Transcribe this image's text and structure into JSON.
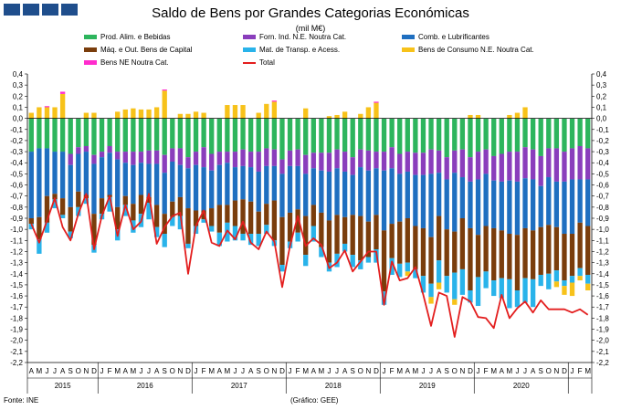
{
  "header": {
    "title": "Saldo de Bens por Grandes Categorias Económicas",
    "unit": "(mil M€)"
  },
  "footer": {
    "source": "Fonte: INE",
    "graphic": "(Gráfico: GEE)"
  },
  "colors": {
    "food": "#2db55d",
    "fuel": "#1f6fc0",
    "capital": "#7a3d0c",
    "transport": "#29b3ea",
    "consumer": "#f7c21a",
    "ne": "#ff2ccd",
    "other": "#8a3ebc",
    "total": "#e31e1e"
  },
  "chart_data": {
    "type": "bar",
    "stacked": true,
    "title": "Saldo de Bens por Grandes Categorias Económicas",
    "subtitle": "(mil M€)",
    "ylim": [
      -2.2,
      0.4
    ],
    "y_ticks": [
      "0,4",
      "0,3",
      "0,2",
      "0,1",
      "0,0",
      "-0,1",
      "-0,2",
      "-0,3",
      "-0,4",
      "-0,5",
      "-0,6",
      "-0,7",
      "-0,8",
      "-0,9",
      "-1,0",
      "-1,1",
      "-1,2",
      "-1,3",
      "-1,4",
      "-1,5",
      "-1,6",
      "-1,7",
      "-1,8",
      "-1,9",
      "-2,0",
      "-2,1",
      "-2,2"
    ],
    "month_labels": [
      "A",
      "M",
      "J",
      "J",
      "A",
      "S",
      "O",
      "N",
      "D",
      "J",
      "F",
      "M",
      "A",
      "M",
      "J",
      "J",
      "A",
      "S",
      "O",
      "N",
      "D",
      "J",
      "F",
      "M",
      "A",
      "M",
      "J",
      "J",
      "A",
      "S",
      "O",
      "N",
      "D",
      "J",
      "F",
      "M",
      "A",
      "M",
      "J",
      "J",
      "A",
      "S",
      "O",
      "N",
      "D",
      "J",
      "F",
      "M",
      "A",
      "M",
      "J",
      "J",
      "A",
      "S",
      "O",
      "N",
      "D",
      "J",
      "F",
      "M",
      "A",
      "M",
      "J",
      "J",
      "A",
      "S",
      "O",
      "N",
      "D",
      "J",
      "F",
      "M"
    ],
    "year_labels": [
      "2015",
      "2016",
      "2017",
      "2018",
      "2019",
      "2020"
    ],
    "legend_position": "top",
    "grid": false,
    "legend": [
      {
        "key": "food",
        "label": "Prod. Alim. e Bebidas"
      },
      {
        "key": "other",
        "label": "Forn. Ind. N.E. Noutra Cat."
      },
      {
        "key": "fuel",
        "label": "Comb. e Lubrificantes"
      },
      {
        "key": "capital",
        "label": "Máq. e Out. Bens de Capital"
      },
      {
        "key": "transport",
        "label": "Mat. de Transp. e Acess."
      },
      {
        "key": "consumer",
        "label": "Bens de Consumo N.E. Noutra Cat."
      },
      {
        "key": "ne",
        "label": "Bens NE Noutra Cat."
      },
      {
        "key": "total",
        "label": "Total"
      }
    ],
    "series": [
      {
        "name": "Prod. Alim. e Bebidas",
        "key": "food",
        "values": [
          -0.3,
          -0.27,
          -0.27,
          -0.3,
          -0.3,
          -0.32,
          -0.26,
          -0.25,
          -0.33,
          -0.3,
          -0.25,
          -0.3,
          -0.3,
          -0.3,
          -0.3,
          -0.29,
          -0.29,
          -0.33,
          -0.27,
          -0.27,
          -0.35,
          -0.3,
          -0.26,
          -0.32,
          -0.3,
          -0.3,
          -0.3,
          -0.28,
          -0.3,
          -0.3,
          -0.27,
          -0.28,
          -0.37,
          -0.29,
          -0.28,
          -0.33,
          -0.31,
          -0.31,
          -0.31,
          -0.28,
          -0.3,
          -0.35,
          -0.28,
          -0.29,
          -0.3,
          -0.3,
          -0.26,
          -0.32,
          -0.3,
          -0.31,
          -0.31,
          -0.28,
          -0.29,
          -0.35,
          -0.29,
          -0.28,
          -0.35,
          -0.3,
          -0.28,
          -0.34,
          -0.32,
          -0.3,
          -0.3,
          -0.26,
          -0.28,
          -0.34,
          -0.27,
          -0.27,
          -0.3,
          -0.27,
          -0.25,
          -0.27
        ]
      },
      {
        "name": "Forn. Ind. N.E. Noutra Cat.",
        "key": "other",
        "values": [
          0.0,
          0.0,
          0.0,
          0.0,
          0.0,
          -0.1,
          -0.06,
          -0.05,
          -0.08,
          -0.05,
          -0.06,
          -0.07,
          -0.1,
          -0.12,
          -0.1,
          -0.12,
          -0.12,
          -0.16,
          -0.12,
          -0.15,
          -0.1,
          -0.12,
          -0.18,
          -0.15,
          -0.12,
          -0.1,
          -0.14,
          -0.15,
          -0.14,
          -0.18,
          -0.16,
          -0.15,
          -0.13,
          -0.14,
          -0.15,
          -0.17,
          -0.14,
          -0.16,
          -0.17,
          -0.17,
          -0.18,
          -0.16,
          -0.16,
          -0.18,
          -0.15,
          -0.17,
          -0.19,
          -0.18,
          -0.18,
          -0.2,
          -0.2,
          -0.22,
          -0.2,
          -0.2,
          -0.2,
          -0.25,
          -0.22,
          -0.25,
          -0.22,
          -0.22,
          -0.25,
          -0.26,
          -0.27,
          -0.28,
          -0.27,
          -0.27,
          -0.26,
          -0.3,
          -0.27,
          -0.28,
          -0.3,
          -0.28
        ]
      },
      {
        "name": "Comb. e Lubrificantes",
        "key": "fuel",
        "values": [
          -0.6,
          -0.62,
          -0.43,
          -0.38,
          -0.42,
          -0.38,
          -0.34,
          -0.39,
          -0.45,
          -0.37,
          -0.38,
          -0.43,
          -0.3,
          -0.35,
          -0.29,
          -0.3,
          -0.37,
          -0.37,
          -0.36,
          -0.29,
          -0.36,
          -0.41,
          -0.39,
          -0.34,
          -0.36,
          -0.38,
          -0.3,
          -0.3,
          -0.31,
          -0.36,
          -0.34,
          -0.31,
          -0.39,
          -0.42,
          -0.39,
          -0.38,
          -0.33,
          -0.38,
          -0.44,
          -0.42,
          -0.41,
          -0.36,
          -0.44,
          -0.46,
          -0.42,
          -0.54,
          -0.5,
          -0.43,
          -0.42,
          -0.46,
          -0.48,
          -0.57,
          -0.39,
          -0.45,
          -0.53,
          -0.37,
          -0.42,
          -0.5,
          -0.47,
          -0.43,
          -0.44,
          -0.48,
          -0.48,
          -0.45,
          -0.46,
          -0.37,
          -0.43,
          -0.41,
          -0.47,
          -0.49,
          -0.39,
          -0.42
        ]
      },
      {
        "name": "Máq. e Out. Bens de Capital",
        "key": "capital",
        "values": [
          -0.05,
          -0.2,
          -0.24,
          -0.05,
          -0.15,
          -0.22,
          -0.14,
          -0.03,
          -0.28,
          -0.14,
          -0.02,
          -0.2,
          -0.08,
          -0.15,
          -0.17,
          -0.05,
          -0.2,
          -0.18,
          -0.14,
          -0.17,
          -0.32,
          -0.14,
          -0.08,
          -0.16,
          -0.25,
          -0.16,
          -0.23,
          -0.31,
          -0.29,
          -0.2,
          -0.19,
          -0.36,
          -0.43,
          -0.26,
          -0.21,
          -0.35,
          -0.19,
          -0.31,
          -0.38,
          -0.35,
          -0.24,
          -0.36,
          -0.4,
          -0.32,
          -0.31,
          -0.55,
          -0.31,
          -0.38,
          -0.4,
          -0.39,
          -0.43,
          -0.42,
          -0.4,
          -0.42,
          -0.37,
          -0.46,
          -0.56,
          -0.38,
          -0.41,
          -0.47,
          -0.43,
          -0.41,
          -0.5,
          -0.45,
          -0.44,
          -0.43,
          -0.44,
          -0.39,
          -0.42,
          -0.38,
          -0.41,
          -0.44
        ]
      },
      {
        "name": "Mat. de Transp. e Acess.",
        "key": "transport",
        "values": [
          -0.05,
          -0.13,
          -0.09,
          -0.08,
          -0.03,
          -0.06,
          -0.08,
          -0.05,
          -0.07,
          -0.05,
          -0.13,
          -0.1,
          -0.1,
          -0.11,
          -0.12,
          -0.15,
          -0.09,
          -0.12,
          -0.08,
          -0.12,
          -0.04,
          -0.07,
          -0.03,
          -0.05,
          -0.12,
          -0.17,
          -0.13,
          -0.06,
          -0.1,
          -0.11,
          -0.08,
          -0.05,
          -0.06,
          -0.06,
          -0.08,
          -0.1,
          -0.14,
          -0.09,
          -0.08,
          -0.12,
          -0.07,
          -0.11,
          -0.08,
          -0.05,
          -0.12,
          -0.12,
          -0.15,
          -0.12,
          -0.08,
          -0.08,
          -0.15,
          -0.12,
          -0.2,
          -0.15,
          -0.24,
          -0.23,
          -0.11,
          -0.26,
          -0.15,
          -0.14,
          -0.18,
          -0.26,
          -0.15,
          -0.22,
          -0.25,
          -0.1,
          -0.14,
          -0.1,
          -0.05,
          -0.06,
          -0.07,
          -0.08
        ]
      },
      {
        "name": "Bens de Consumo N.E. Noutra Cat.",
        "key": "consumer",
        "values": [
          0.05,
          0.1,
          0.1,
          0.1,
          0.22,
          0.0,
          0.0,
          0.05,
          0.05,
          0.0,
          0.0,
          0.06,
          0.08,
          0.09,
          0.08,
          0.08,
          0.1,
          0.25,
          0.0,
          0.04,
          0.04,
          0.06,
          0.05,
          0.0,
          0.0,
          0.12,
          0.12,
          0.12,
          0.0,
          0.05,
          0.13,
          0.15,
          0.0,
          0.0,
          0.0,
          0.09,
          0.0,
          0.0,
          0.02,
          0.03,
          0.06,
          0.0,
          0.04,
          0.1,
          0.14,
          0.0,
          0.0,
          0.0,
          -0.04,
          0.0,
          0.0,
          -0.06,
          -0.06,
          0.0,
          -0.05,
          0.0,
          0.03,
          0.03,
          0.0,
          0.0,
          0.0,
          0.03,
          0.05,
          0.1,
          0.0,
          0.0,
          0.0,
          -0.05,
          -0.08,
          -0.12,
          -0.04,
          -0.06
        ]
      },
      {
        "name": "Bens NE Noutra Cat.",
        "key": "ne",
        "values": [
          0.0,
          0.0,
          0.01,
          0.0,
          0.02,
          0.0,
          0.0,
          0.0,
          0.0,
          0.0,
          0.0,
          0.0,
          0.0,
          0.0,
          0.0,
          0.0,
          0.0,
          0.01,
          0.0,
          0.0,
          0.0,
          0.0,
          0.0,
          0.0,
          0.0,
          0.0,
          0.0,
          0.0,
          0.0,
          0.0,
          0.0,
          0.01,
          0.0,
          0.0,
          0.0,
          0.0,
          0.0,
          0.0,
          0.0,
          0.0,
          0.0,
          0.0,
          0.0,
          0.0,
          0.01,
          0.0,
          0.0,
          0.0,
          0.0,
          0.0,
          0.0,
          0.0,
          0.0,
          0.0,
          0.0,
          0.0,
          0.0,
          0.0,
          0.0,
          0.0,
          0.0,
          0.0,
          0.0,
          0.0,
          0.0,
          0.0,
          0.0,
          0.0,
          0.0,
          0.0,
          0.0,
          0.0
        ]
      },
      {
        "name": "Total",
        "key": "total",
        "type": "line",
        "values": [
          -0.95,
          -1.12,
          -0.92,
          -0.72,
          -0.98,
          -1.1,
          -0.86,
          -0.68,
          -1.18,
          -0.88,
          -0.7,
          -1.06,
          -0.78,
          -1.0,
          -0.93,
          -0.68,
          -1.13,
          -0.98,
          -0.88,
          -0.85,
          -1.4,
          -0.97,
          -0.83,
          -1.12,
          -1.15,
          -1.01,
          -1.09,
          -0.93,
          -1.12,
          -1.18,
          -1.02,
          -1.11,
          -1.52,
          -1.15,
          -0.88,
          -1.15,
          -1.08,
          -1.14,
          -1.35,
          -1.3,
          -1.19,
          -1.38,
          -1.29,
          -1.2,
          -1.2,
          -1.68,
          -1.29,
          -1.46,
          -1.44,
          -1.34,
          -1.59,
          -1.87,
          -1.57,
          -1.6,
          -1.97,
          -1.61,
          -1.65,
          -1.79,
          -1.8,
          -1.89,
          -1.59,
          -1.8,
          -1.71,
          -1.65,
          -1.75,
          -1.64,
          -1.72,
          -1.72,
          -1.72,
          -1.75,
          -1.72,
          -1.77
        ]
      }
    ]
  }
}
